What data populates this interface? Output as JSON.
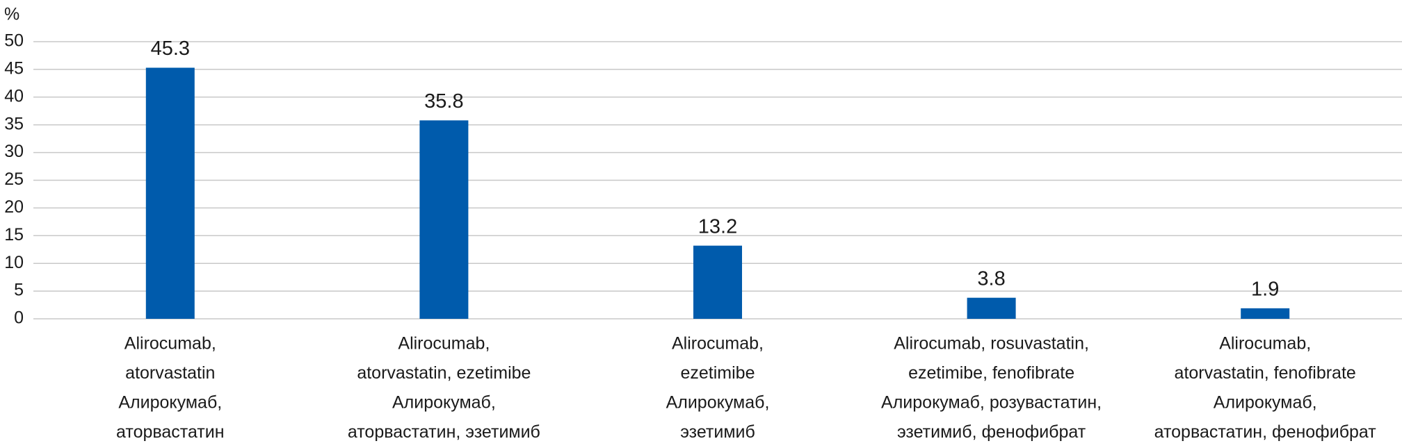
{
  "chart_data": {
    "type": "bar",
    "y_label": "%",
    "categories": [
      [
        "Alirocumab,",
        "atorvastatin",
        "Алирокумаб,",
        "аторвастатин"
      ],
      [
        "Alirocumab,",
        "atorvastatin, ezetimibe",
        "Алирокумаб,",
        "аторвастатин, эзетимиб"
      ],
      [
        "Alirocumab,",
        "ezetimibe",
        "Алирокумаб,",
        "эзетимиб"
      ],
      [
        "Alirocumab, rosuvastatin,",
        "ezetimibe, fenofibrate",
        "Алирокумаб, розувастатин,",
        "эзетимиб, фенофибрат"
      ],
      [
        "Alirocumab,",
        "atorvastatin, fenofibrate",
        "Алирокумаб,",
        "аторвастатин, фенофибрат"
      ]
    ],
    "values": [
      45.3,
      35.8,
      13.2,
      3.8,
      1.9
    ],
    "color": "#005bac",
    "ylim": [
      0,
      50
    ],
    "yticks": [
      0,
      5,
      10,
      15,
      20,
      25,
      30,
      35,
      40,
      45,
      50
    ],
    "grid": true
  }
}
